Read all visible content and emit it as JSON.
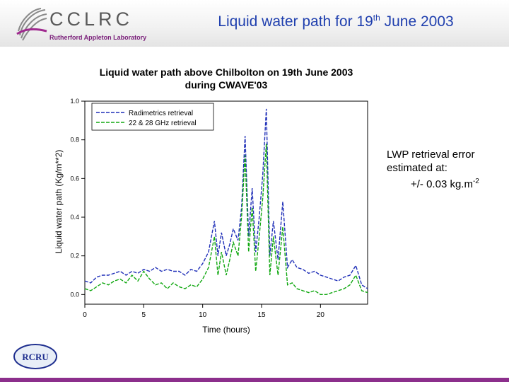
{
  "header": {
    "logo_name": "CCLRC",
    "logo_subtitle": "Rutherford Appleton Laboratory",
    "title_main": "Liquid water path for 19",
    "title_sup": "th",
    "title_tail": " June 2003"
  },
  "note": {
    "line1": "LWP retrieval error",
    "line2": "estimated at:",
    "value": "+/- 0.03 kg.m",
    "unit_sup": "-2"
  },
  "footer_logo": "RCRU",
  "colors": {
    "radimetrics": "#1f2fb8",
    "ghz": "#11a811",
    "title": "#1f3fae",
    "footer": "#8c2f8c"
  },
  "chart_data": {
    "type": "line",
    "title_line1": "Liquid water path above Chilbolton on 19th June 2003",
    "title_line2": "during CWAVE'03",
    "xlabel": "Time (hours)",
    "ylabel": "Liquid water path (Kg/m**2)",
    "xlim": [
      0,
      24
    ],
    "ylim": [
      -0.05,
      1.0
    ],
    "xticks": [
      0,
      5,
      10,
      15,
      20
    ],
    "yticks": [
      0.0,
      0.2,
      0.4,
      0.6,
      0.8,
      1.0
    ],
    "ytick_labels": [
      "0.0",
      "0.2",
      "0.4",
      "0.6",
      "0.8",
      "1.0"
    ],
    "grid": false,
    "legend_position": "top-left",
    "series": [
      {
        "name": "Radimetrics retrieval",
        "style": "dashed",
        "x": [
          0,
          0.5,
          1,
          1.5,
          2,
          2.5,
          3,
          3.5,
          4,
          4.5,
          5,
          5.5,
          6,
          6.5,
          7,
          7.5,
          8,
          8.5,
          9,
          9.5,
          10,
          10.5,
          11,
          11.3,
          11.6,
          12,
          12.3,
          12.6,
          13,
          13.3,
          13.6,
          13.9,
          14.2,
          14.5,
          14.8,
          15.1,
          15.4,
          15.7,
          16,
          16.4,
          16.8,
          17.2,
          17.6,
          18,
          18.5,
          19,
          19.5,
          20,
          20.5,
          21,
          21.5,
          22,
          22.5,
          23,
          23.5,
          24
        ],
        "values": [
          0.07,
          0.06,
          0.09,
          0.1,
          0.1,
          0.11,
          0.12,
          0.1,
          0.12,
          0.11,
          0.13,
          0.12,
          0.14,
          0.12,
          0.13,
          0.12,
          0.12,
          0.1,
          0.13,
          0.12,
          0.16,
          0.22,
          0.38,
          0.2,
          0.32,
          0.2,
          0.26,
          0.34,
          0.28,
          0.45,
          0.82,
          0.3,
          0.55,
          0.22,
          0.4,
          0.62,
          0.96,
          0.2,
          0.38,
          0.18,
          0.48,
          0.14,
          0.18,
          0.14,
          0.13,
          0.11,
          0.12,
          0.1,
          0.09,
          0.08,
          0.07,
          0.09,
          0.1,
          0.15,
          0.05,
          0.03
        ]
      },
      {
        "name": "22 & 28 GHz retrieval",
        "style": "dashed",
        "x": [
          0,
          0.5,
          1,
          1.5,
          2,
          2.5,
          3,
          3.5,
          4,
          4.5,
          5,
          5.5,
          6,
          6.5,
          7,
          7.5,
          8,
          8.5,
          9,
          9.5,
          10,
          10.5,
          11,
          11.3,
          11.6,
          12,
          12.3,
          12.6,
          13,
          13.3,
          13.6,
          13.9,
          14.2,
          14.5,
          14.8,
          15.1,
          15.4,
          15.7,
          16,
          16.4,
          16.8,
          17.2,
          17.6,
          18,
          18.5,
          19,
          19.5,
          20,
          20.5,
          21,
          21.5,
          22,
          22.5,
          23,
          23.5,
          24
        ],
        "values": [
          0.03,
          0.02,
          0.04,
          0.06,
          0.05,
          0.07,
          0.08,
          0.06,
          0.1,
          0.07,
          0.12,
          0.08,
          0.05,
          0.06,
          0.03,
          0.06,
          0.04,
          0.03,
          0.05,
          0.04,
          0.08,
          0.14,
          0.3,
          0.1,
          0.22,
          0.1,
          0.18,
          0.27,
          0.2,
          0.4,
          0.72,
          0.22,
          0.45,
          0.12,
          0.3,
          0.5,
          0.78,
          0.1,
          0.3,
          0.1,
          0.35,
          0.05,
          0.06,
          0.03,
          0.02,
          0.01,
          0.02,
          0.0,
          0.0,
          0.01,
          0.02,
          0.03,
          0.05,
          0.1,
          0.02,
          0.01
        ]
      }
    ]
  }
}
